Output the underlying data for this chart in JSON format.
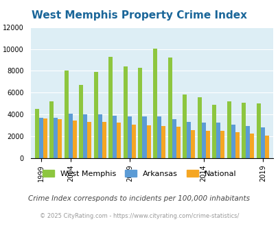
{
  "title": "West Memphis Property Crime Index",
  "subtitle": "Crime Index corresponds to incidents per 100,000 inhabitants",
  "copyright": "© 2025 CityRating.com - https://www.cityrating.com/crime-statistics/",
  "groups": [
    {
      "year": 1999,
      "wm": 4500,
      "ark": 3700,
      "nat": 3650
    },
    {
      "year": 2000,
      "wm": 5200,
      "ark": 3700,
      "nat": 3600
    },
    {
      "year": 2004,
      "wm": 8050,
      "ark": 4100,
      "nat": 3450
    },
    {
      "year": 2005,
      "wm": 6700,
      "ark": 4000,
      "nat": 3300
    },
    {
      "year": 2006,
      "wm": 7900,
      "ark": 4000,
      "nat": 3300
    },
    {
      "year": 2008,
      "wm": 9300,
      "ark": 3900,
      "nat": 3250
    },
    {
      "year": 2009,
      "wm": 8400,
      "ark": 3800,
      "nat": 3050
    },
    {
      "year": 2010,
      "wm": 8300,
      "ark": 3800,
      "nat": 3000
    },
    {
      "year": 2011,
      "wm": 10050,
      "ark": 3800,
      "nat": 2950
    },
    {
      "year": 2012,
      "wm": 9200,
      "ark": 3600,
      "nat": 2900
    },
    {
      "year": 2013,
      "wm": 5850,
      "ark": 3300,
      "nat": 2600
    },
    {
      "year": 2014,
      "wm": 5550,
      "ark": 3250,
      "nat": 2500
    },
    {
      "year": 2015,
      "wm": 4900,
      "ark": 3250,
      "nat": 2500
    },
    {
      "year": 2017,
      "wm": 5200,
      "ark": 3100,
      "nat": 2400
    },
    {
      "year": 2018,
      "wm": 5100,
      "ark": 2950,
      "nat": 2250
    },
    {
      "year": 2019,
      "wm": 5000,
      "ark": 2850,
      "nat": 2100
    }
  ],
  "xtick_year_labels": [
    1999,
    2004,
    2009,
    2014,
    2019
  ],
  "bar_color_wm": "#8dc63f",
  "bar_color_ark": "#5b9bd5",
  "bar_color_nat": "#f5a623",
  "ylim": [
    0,
    12000
  ],
  "yticks": [
    0,
    2000,
    4000,
    6000,
    8000,
    10000,
    12000
  ],
  "bg_color": "#ddeef5",
  "title_color": "#1a6699",
  "subtitle_color": "#444444",
  "copyright_color": "#999999",
  "title_fontsize": 11,
  "legend_fontsize": 8,
  "subtitle_fontsize": 7.5,
  "copyright_fontsize": 6
}
